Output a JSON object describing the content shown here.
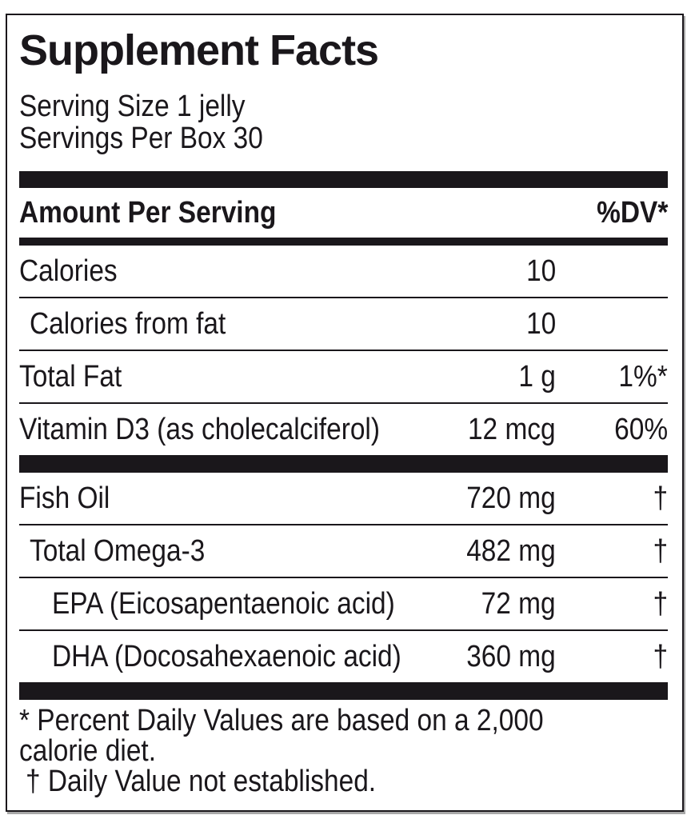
{
  "label": {
    "title": "Supplement Facts",
    "serving_lines": {
      "size": "Serving Size 1 jelly",
      "per_box": "Servings Per Box 30"
    },
    "header": {
      "left": "Amount Per Serving",
      "right": "%DV*"
    },
    "sections": [
      {
        "rows": [
          {
            "name": "Calories",
            "amount": "10",
            "dv": "",
            "indent": 0
          },
          {
            "name": "Calories from fat",
            "amount": "10",
            "dv": "",
            "indent": 1
          },
          {
            "name": "Total Fat",
            "amount": "1 g",
            "dv": "1%*",
            "indent": 0
          },
          {
            "name": "Vitamin D3 (as cholecalciferol)",
            "amount": "12 mcg",
            "dv": "60%",
            "indent": 0
          }
        ]
      },
      {
        "rows": [
          {
            "name": "Fish Oil",
            "amount": "720 mg",
            "dv": "†",
            "indent": 0
          },
          {
            "name": "Total Omega-3",
            "amount": "482 mg",
            "dv": "†",
            "indent": 1
          },
          {
            "name": "EPA (Eicosapentaenoic acid)",
            "amount": "72 mg",
            "dv": "†",
            "indent": 2
          },
          {
            "name": "DHA (Docosahexaenoic acid)",
            "amount": "360 mg",
            "dv": "†",
            "indent": 2
          }
        ]
      }
    ],
    "footnote_lines": [
      "* Percent Daily Values are based on a 2,000",
      "calorie diet.",
      "† Daily Value not established."
    ],
    "colors": {
      "text": "#1a171b",
      "bar": "#1a171b",
      "background": "#ffffff",
      "shadow": "#a8a8a8"
    }
  }
}
